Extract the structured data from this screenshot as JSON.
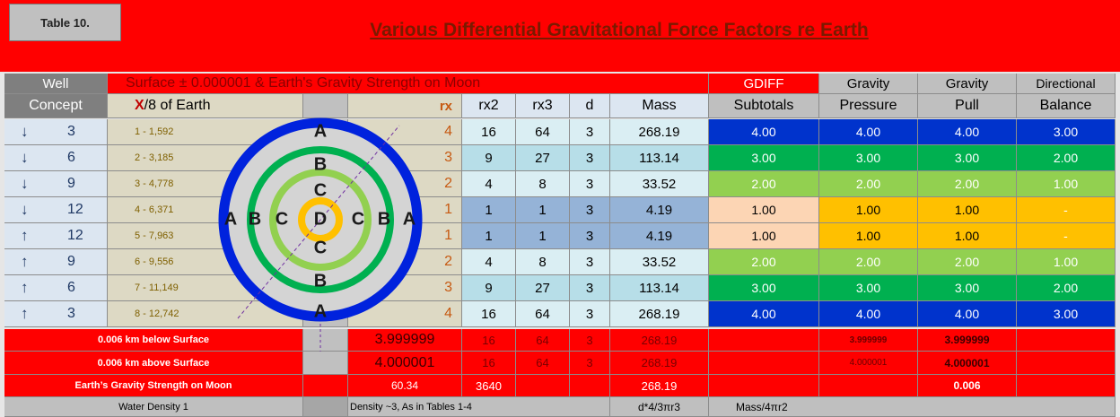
{
  "header": {
    "table_label": "Table 10.",
    "title": "Various Differential Gravitational Force Factors re Earth"
  },
  "table": {
    "header_top": [
      "Well",
      "Surface ± 0.000001 & Earth's Gravity Strength on Moon",
      "GDIFF",
      "Gravity",
      "Gravity",
      "Directional"
    ],
    "header_bottom": {
      "concept": "Concept",
      "x_mark": "X",
      "x_rest": "/8 of Earth",
      "rx": "rx",
      "rx2": "rx2",
      "rx3": "rx3",
      "d": "d",
      "mass": "Mass",
      "subtotals": "Subtotals",
      "pressure": "Pressure",
      "pull": "Pull",
      "balance": "Balance"
    },
    "rows": [
      [
        "↓",
        "3",
        "1 - 1,592",
        "4",
        "16",
        "64",
        "3",
        "268.19",
        "4.00",
        "4.00",
        "4.00",
        "3.00"
      ],
      [
        "↓",
        "6",
        "2 - 3,185",
        "3",
        "9",
        "27",
        "3",
        "113.14",
        "3.00",
        "3.00",
        "3.00",
        "2.00"
      ],
      [
        "↓",
        "9",
        "3 - 4,778",
        "2",
        "4",
        "8",
        "3",
        "33.52",
        "2.00",
        "2.00",
        "2.00",
        "1.00"
      ],
      [
        "↓",
        "12",
        "4 - 6,371",
        "1",
        "1",
        "1",
        "3",
        "4.19",
        "1.00",
        "1.00",
        "1.00",
        "-"
      ],
      [
        "↑",
        "12",
        "5 - 7,963",
        "1",
        "1",
        "1",
        "3",
        "4.19",
        "1.00",
        "1.00",
        "1.00",
        "-"
      ],
      [
        "↑",
        "9",
        "6 - 9,556",
        "2",
        "4",
        "8",
        "3",
        "33.52",
        "2.00",
        "2.00",
        "2.00",
        "1.00"
      ],
      [
        "↑",
        "6",
        "7 - 11,149",
        "3",
        "9",
        "27",
        "3",
        "113.14",
        "3.00",
        "3.00",
        "3.00",
        "2.00"
      ],
      [
        "↑",
        "3",
        "8 - 12,742",
        "4",
        "16",
        "64",
        "3",
        "268.19",
        "4.00",
        "4.00",
        "4.00",
        "3.00"
      ]
    ],
    "summary_rows": [
      {
        "label": "0.006 km below Surface",
        "rx": "3.999999",
        "rx2": "16",
        "rx3": "64",
        "d": "3",
        "mass": "268.19",
        "pressure": "3.999999",
        "pull": "3.999999"
      },
      {
        "label": "0.006 km above Surface",
        "rx": "4.000001",
        "rx2": "16",
        "rx3": "64",
        "d": "3",
        "mass": "268.19",
        "pressure": "4.000001",
        "pull": "4.000001"
      },
      {
        "label": "Earth’s Gravity Strength on Moon",
        "rx": "60.34",
        "rx2": "3640",
        "mass": "268.19",
        "pull": "0.006"
      }
    ],
    "footer": {
      "water": "Water Density 1",
      "density": "Density ~3, As in Tables 1-4",
      "mass_formula": "d*4/3πr3",
      "gravity_formula": "Mass/4πr2"
    }
  },
  "diagram": {
    "vertical": [
      "A",
      "B",
      "C",
      "C",
      "B",
      "A"
    ],
    "horizontal": [
      "A",
      "B",
      "C",
      "D",
      "C",
      "B",
      "A"
    ]
  }
}
